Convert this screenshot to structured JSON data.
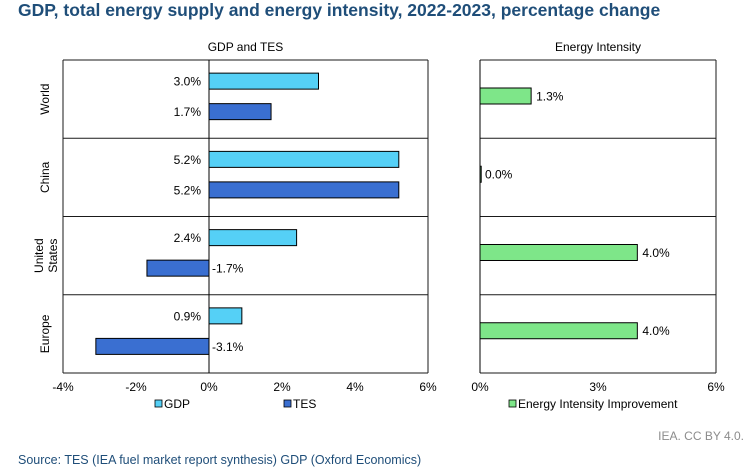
{
  "title": "GDP, total energy supply and energy intensity, 2022-2023, percentage change",
  "credit": "IEA. CC BY 4.0.",
  "source": "Source: TES (IEA fuel market report synthesis) GDP (Oxford Economics)",
  "colors": {
    "gdp": "#55d0f6",
    "tes": "#3a6fd1",
    "intensity": "#7ee689",
    "border": "#1a1a1a",
    "axis": "#000000"
  },
  "chart_data": [
    {
      "type": "bar",
      "orientation": "horizontal",
      "title": "GDP and TES",
      "categories": [
        "World",
        "China",
        "United States",
        "Europe"
      ],
      "series": [
        {
          "name": "GDP",
          "values": [
            3.0,
            5.2,
            2.4,
            0.9
          ],
          "labels": [
            "3.0%",
            "5.2%",
            "2.4%",
            "0.9%"
          ]
        },
        {
          "name": "TES",
          "values": [
            1.7,
            5.2,
            -1.7,
            -3.1
          ],
          "labels": [
            "1.7%",
            "5.2%",
            "-1.7%",
            "-3.1%"
          ]
        }
      ],
      "xlim": [
        -4,
        6
      ],
      "xticks": [
        "-4%",
        "-2%",
        "0%",
        "2%",
        "4%",
        "6%"
      ],
      "xtick_values": [
        -4,
        -2,
        0,
        2,
        4,
        6
      ],
      "legend_position": "bottom"
    },
    {
      "type": "bar",
      "orientation": "horizontal",
      "title": "Energy Intensity",
      "categories": [
        "World",
        "China",
        "United States",
        "Europe"
      ],
      "series": [
        {
          "name": "Energy Intensity Improvement",
          "values": [
            1.3,
            0.0,
            4.0,
            4.0
          ],
          "labels": [
            "1.3%",
            "0.0%",
            "4.0%",
            "4.0%"
          ]
        }
      ],
      "xlim": [
        0,
        6
      ],
      "xticks": [
        "0%",
        "3%",
        "6%"
      ],
      "xtick_values": [
        0,
        3,
        6
      ],
      "legend_position": "bottom"
    }
  ]
}
